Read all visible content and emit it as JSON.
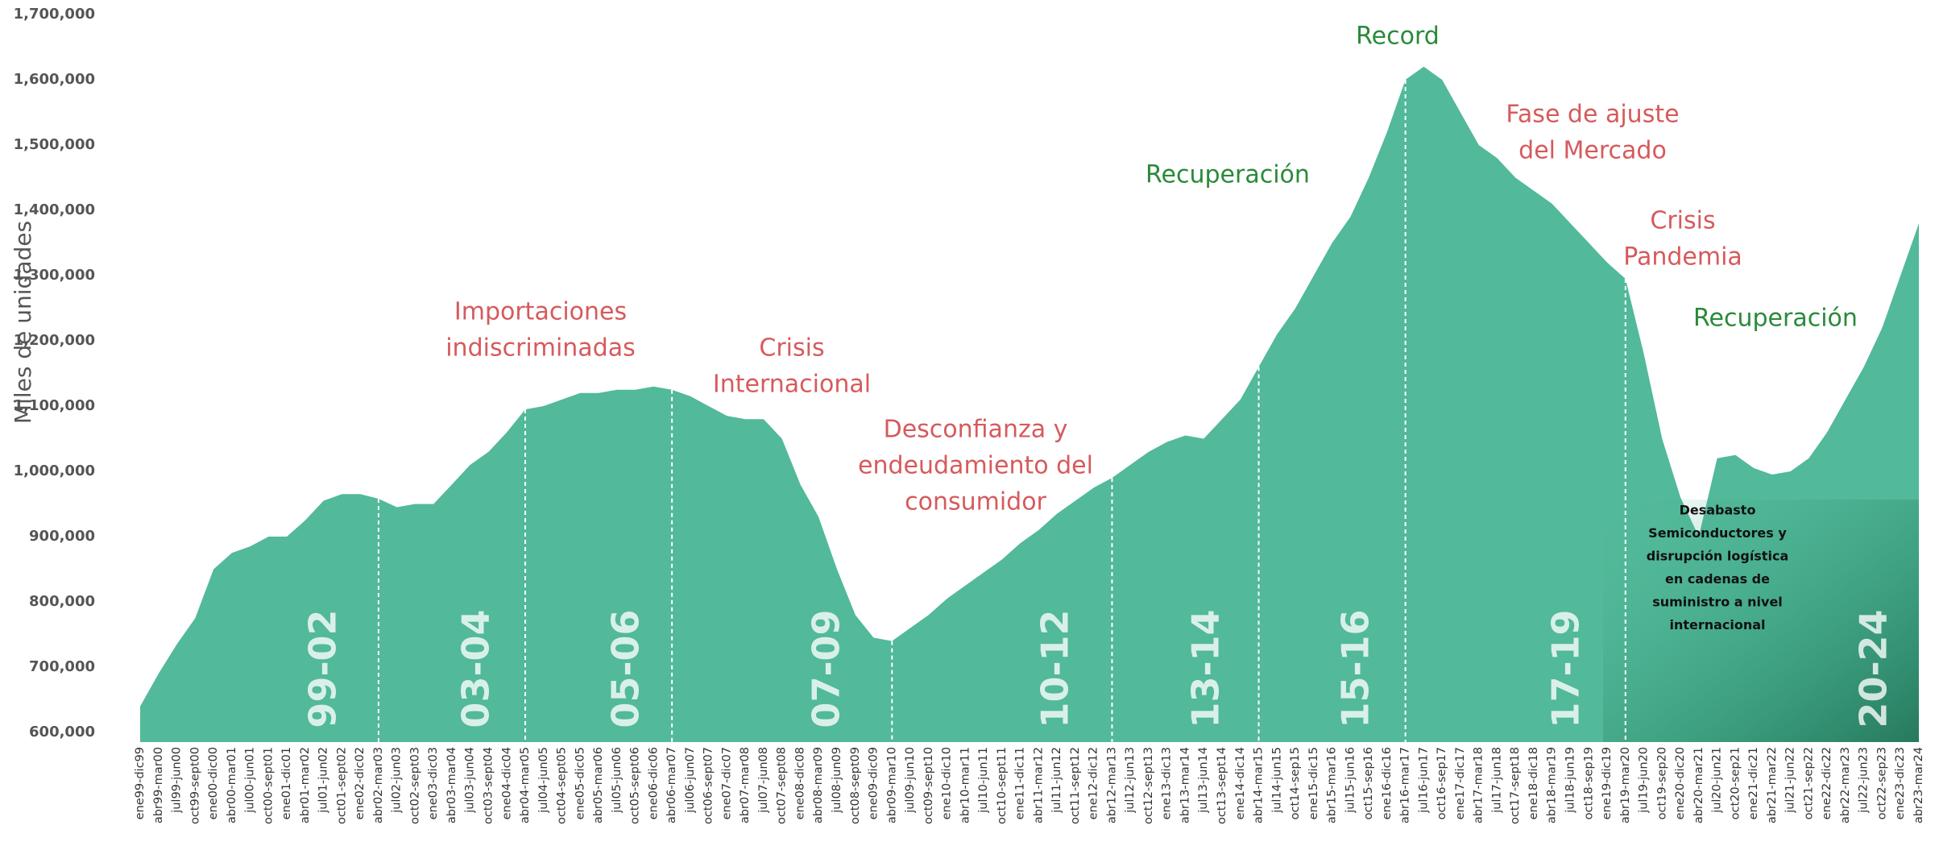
{
  "chart_data": {
    "type": "area",
    "y_label": "Miles de unidades",
    "color": "#52b99a",
    "grid": false,
    "categories": [
      "ene99-dic99",
      "abr99-mar00",
      "jul99-jun00",
      "oct99-sept00",
      "ene00-dic00",
      "abr00-mar01",
      "jul00-jun01",
      "oct00-sept01",
      "ene01-dic01",
      "abr01-mar02",
      "jul01-jun02",
      "oct01-sept02",
      "ene02-dic02",
      "abr02-mar03",
      "jul02-jun03",
      "oct02-sept03",
      "ene03-dic03",
      "abr03-mar04",
      "jul03-jun04",
      "oct03-sept04",
      "ene04-dic04",
      "abr04-mar05",
      "jul04-jun05",
      "oct04-sept05",
      "ene05-dic05",
      "abr05-mar06",
      "jul05-jun06",
      "oct05-sept06",
      "ene06-dic06",
      "abr06-mar07",
      "jul06-jun07",
      "oct06-sept07",
      "ene07-dic07",
      "abr07-mar08",
      "jul07-jun08",
      "oct07-sept08",
      "ene08-dic08",
      "abr08-mar09",
      "jul08-jun09",
      "oct08-sept09",
      "ene09-dic09",
      "abr09-mar10",
      "jul09-jun10",
      "oct09-sept10",
      "ene10-dic10",
      "abr10-mar11",
      "jul10-jun11",
      "oct10-sept11",
      "ene11-dic11",
      "abr11-mar12",
      "jul11-jun12",
      "oct11-sept12",
      "ene12-dic12",
      "abr12-mar13",
      "jul12-jun13",
      "oct12-sept13",
      "ene13-dic13",
      "abr13-mar14",
      "jul13-jun14",
      "oct13-sept14",
      "ene14-dic14",
      "abr14-mar15",
      "jul14-jun15",
      "oct14-sep15",
      "ene15-dic15",
      "abr15-mar16",
      "jul15-jun16",
      "oct15-sep16",
      "ene16-dic16",
      "abr16-mar17",
      "jul16-jun17",
      "oct16-sep17",
      "ene17-dic17",
      "abr17-mar18",
      "jul17-jun18",
      "oct17-sept18",
      "ene18-dic18",
      "abr18-mar19",
      "jul18-jun19",
      "oct18-sep19",
      "ene19-dic19",
      "abr19-mar20",
      "jul19-jun20",
      "oct19-sep20",
      "ene20-dic20",
      "abr20-mar21",
      "jul20-jun21",
      "oct20-sep21",
      "ene21-dic21",
      "abr21-mar22",
      "jul21-jun22",
      "oct21-sep22",
      "ene22-dic22",
      "abr22-mar23",
      "jul22-jun23",
      "oct22-sep23",
      "ene23-dic23",
      "abr23-mar24"
    ],
    "values": [
      640000,
      690000,
      735000,
      775000,
      850000,
      875000,
      885000,
      900000,
      900000,
      925000,
      955000,
      965000,
      965000,
      958000,
      945000,
      950000,
      950000,
      980000,
      1010000,
      1030000,
      1060000,
      1095000,
      1100000,
      1110000,
      1120000,
      1120000,
      1125000,
      1125000,
      1130000,
      1125000,
      1115000,
      1100000,
      1085000,
      1080000,
      1080000,
      1050000,
      980000,
      930000,
      850000,
      780000,
      745000,
      740000,
      760000,
      780000,
      805000,
      825000,
      845000,
      865000,
      890000,
      910000,
      935000,
      955000,
      975000,
      990000,
      1010000,
      1030000,
      1045000,
      1055000,
      1050000,
      1080000,
      1110000,
      1160000,
      1210000,
      1250000,
      1300000,
      1350000,
      1390000,
      1450000,
      1520000,
      1600000,
      1620000,
      1600000,
      1550000,
      1500000,
      1480000,
      1450000,
      1430000,
      1410000,
      1380000,
      1350000,
      1320000,
      1295000,
      1180000,
      1050000,
      960000,
      900000,
      1020000,
      1025000,
      1005000,
      995000,
      1000000,
      1020000,
      1060000,
      1110000,
      1160000,
      1220000,
      1300000,
      1380000
    ],
    "ylim": [
      600000,
      1700000
    ],
    "yticks": [
      {
        "value": 600000,
        "label": "600,000"
      },
      {
        "value": 700000,
        "label": "700,000"
      },
      {
        "value": 800000,
        "label": "800,000"
      },
      {
        "value": 900000,
        "label": "900,000"
      },
      {
        "value": 1000000,
        "label": "1,000,000"
      },
      {
        "value": 1100000,
        "label": "1,100,000"
      },
      {
        "value": 1200000,
        "label": "1,200,000"
      },
      {
        "value": 1300000,
        "label": "1,300,000"
      },
      {
        "value": 1400000,
        "label": "1,400,000"
      },
      {
        "value": 1500000,
        "label": "1,500,000"
      },
      {
        "value": 1600000,
        "label": "1,600,000"
      },
      {
        "value": 1700000,
        "label": "1,700,000"
      }
    ],
    "periods": [
      "99-02",
      "03-04",
      "05-06",
      "07-09",
      "10-12",
      "13-14",
      "15-16",
      "17-19",
      "20-24"
    ],
    "annotations": [
      {
        "lines": [
          "Importaciones",
          "indiscriminadas"
        ],
        "color": "#d65a5c"
      },
      {
        "lines": [
          "Crisis",
          "Internacional"
        ],
        "color": "#d65a5c"
      },
      {
        "lines": [
          "Desconfianza y",
          "endeudamiento del",
          "consumidor"
        ],
        "color": "#d65a5c"
      },
      {
        "lines": [
          "Recuperación"
        ],
        "color": "#2a8a3a"
      },
      {
        "lines": [
          "Record"
        ],
        "color": "#2a8a3a"
      },
      {
        "lines": [
          "Fase de ajuste",
          "del Mercado"
        ],
        "color": "#d65a5c"
      },
      {
        "lines": [
          "Crisis",
          "Pandemia"
        ],
        "color": "#d65a5c"
      },
      {
        "lines": [
          "Recuperación"
        ],
        "color": "#2a8a3a"
      }
    ],
    "note": [
      "Desabasto",
      "Semiconductores y",
      "disrupción logística",
      "en cadenas de",
      "suministro a nivel",
      "internacional"
    ]
  }
}
